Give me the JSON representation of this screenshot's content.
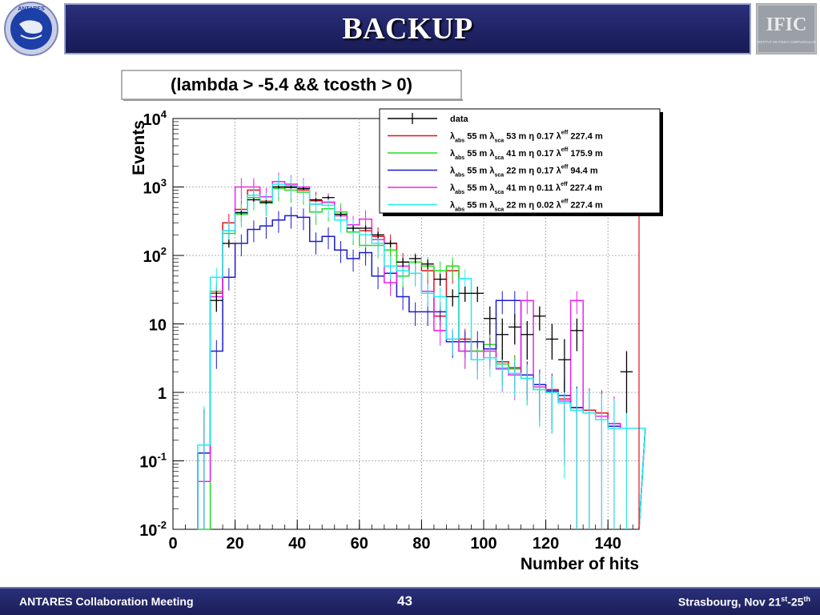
{
  "slide": {
    "title": "BACKUP",
    "logo_left_text": "ANTARES",
    "logo_right_text": "IFIC",
    "logo_right_subtext": "INSTITUT DE FISICA CORPUSCULAR"
  },
  "footer": {
    "left": "ANTARES Collaboration Meeting",
    "page": "43",
    "right_prefix": "Strasbourg, Nov 21",
    "right_sup1": "st",
    "right_mid": "-25",
    "right_sup2": "th"
  },
  "colors": {
    "header_bg": "#1f2263",
    "data": "#000000",
    "red": "#e8101a",
    "green": "#22dd22",
    "blue": "#1a1ad0",
    "magenta": "#ee22ee",
    "cyan": "#22eeee"
  },
  "chart_data": {
    "type": "line",
    "subtype": "histogram-step",
    "title": "(lambda > -5.4 && tcosth > 0)",
    "xlabel": "Number of hits",
    "ylabel": "Events",
    "xlim": [
      0,
      150
    ],
    "ylim": [
      0.01,
      10000
    ],
    "yscale": "log",
    "grid": true,
    "legend_position": "top-right",
    "x_ticks": [
      "0",
      "20",
      "40",
      "60",
      "80",
      "100",
      "120",
      "140"
    ],
    "y_ticks": [
      {
        "base": "10",
        "exp": "-2"
      },
      {
        "base": "10",
        "exp": "-1"
      },
      {
        "base": "1",
        "exp": ""
      },
      {
        "base": "10",
        "exp": ""
      },
      {
        "base": "10",
        "exp": "2"
      },
      {
        "base": "10",
        "exp": "3"
      },
      {
        "base": "10",
        "exp": "4"
      }
    ],
    "bin_width": 4,
    "bin_edges_start": 8,
    "legend": [
      {
        "key": "data",
        "text": "data",
        "color": "#000000"
      },
      {
        "key": "red",
        "abs": "55 m",
        "sca": "53 m",
        "eta": "0.17",
        "eff": "227.4 m",
        "color": "#e8101a"
      },
      {
        "key": "green",
        "abs": "55 m",
        "sca": "41 m",
        "eta": "0.17",
        "eff": "175.9 m",
        "color": "#22dd22"
      },
      {
        "key": "blue",
        "abs": "55 m",
        "sca": "22 m",
        "eta": "0.17",
        "eff": "94.4 m",
        "color": "#1a1ad0"
      },
      {
        "key": "magenta",
        "abs": "55 m",
        "sca": "41 m",
        "eta": "0.11",
        "eff": "227.4 m",
        "color": "#ee22ee"
      },
      {
        "key": "cyan",
        "abs": "55 m",
        "sca": "22 m",
        "eta": "0.02",
        "eff": "227.4 m",
        "color": "#22eeee"
      }
    ],
    "legend_symbols": {
      "lambda": "λ",
      "eta": "η",
      "abs": "abs",
      "sca": "sca",
      "eff": "eff"
    },
    "series": [
      {
        "name": "data",
        "kind": "points",
        "x": [
          14,
          18,
          22,
          26,
          30,
          34,
          38,
          42,
          46,
          50,
          54,
          58,
          62,
          66,
          70,
          74,
          78,
          82,
          86,
          90,
          94,
          98,
          102,
          106,
          110,
          114,
          118,
          122,
          126,
          130,
          146
        ],
        "y": [
          22,
          150,
          420,
          650,
          600,
          1000,
          1000,
          950,
          650,
          700,
          400,
          250,
          250,
          200,
          150,
          80,
          90,
          75,
          45,
          25,
          28,
          28,
          12,
          7,
          9,
          7,
          13,
          6,
          3,
          8,
          2
        ],
        "err_lo": [
          7,
          20,
          30,
          40,
          40,
          50,
          50,
          50,
          40,
          40,
          30,
          25,
          25,
          22,
          18,
          12,
          13,
          12,
          9,
          7,
          7,
          7,
          5,
          4,
          4,
          4,
          5,
          3,
          2,
          4,
          1.5
        ],
        "err_hi": [
          8,
          20,
          30,
          40,
          40,
          50,
          50,
          50,
          40,
          40,
          30,
          25,
          25,
          22,
          18,
          12,
          13,
          12,
          9,
          7,
          7,
          7,
          6,
          5,
          5,
          4,
          5,
          4,
          3,
          4,
          2
        ]
      },
      {
        "name": "red",
        "kind": "step",
        "values": [
          0.13,
          28,
          300,
          470,
          900,
          620,
          1000,
          980,
          900,
          630,
          600,
          380,
          220,
          230,
          190,
          150,
          80,
          80,
          60,
          13,
          60,
          6,
          4,
          5,
          2.8,
          2.3,
          1.8,
          1.2,
          1.1,
          0.8,
          0.6,
          0.55,
          0.5,
          0.35,
          0.3,
          0.3
        ]
      },
      {
        "name": "green",
        "kind": "step",
        "values": [
          0.01,
          30,
          210,
          400,
          700,
          580,
          950,
          900,
          840,
          430,
          480,
          430,
          220,
          140,
          140,
          120,
          50,
          80,
          70,
          60,
          70,
          4,
          4,
          5,
          2.6,
          2.2,
          1.6,
          1.1,
          1.0,
          0.75,
          0.6,
          0.5,
          0.45,
          0.32,
          0.3,
          0.3
        ]
      },
      {
        "name": "blue",
        "kind": "step",
        "values": [
          0.13,
          4,
          48,
          150,
          240,
          270,
          330,
          380,
          360,
          160,
          190,
          120,
          90,
          110,
          50,
          55,
          25,
          15,
          15,
          15,
          5.5,
          5.5,
          5.5,
          4.3,
          22,
          22,
          1.8,
          1.3,
          1.05,
          0.9,
          0.6,
          0.5,
          0.45,
          0.32,
          0.3,
          0.3
        ]
      },
      {
        "name": "magenta",
        "kind": "step",
        "values": [
          0.05,
          25,
          230,
          1000,
          1000,
          720,
          1200,
          1100,
          1000,
          560,
          600,
          380,
          280,
          340,
          170,
          40,
          70,
          55,
          30,
          8,
          6,
          4,
          3,
          4,
          2.2,
          1.8,
          22,
          1.2,
          1.0,
          0.75,
          22,
          0.5,
          0.45,
          0.35,
          0.3,
          0.3
        ]
      },
      {
        "name": "cyan",
        "kind": "step",
        "values": [
          0.17,
          48,
          230,
          430,
          760,
          610,
          1100,
          1050,
          940,
          560,
          540,
          330,
          250,
          200,
          150,
          70,
          60,
          55,
          28,
          25,
          6,
          46,
          3,
          3.2,
          2.3,
          1.9,
          1.6,
          1.1,
          1.0,
          0.7,
          0.55,
          0.5,
          0.4,
          0.3,
          0.3,
          0.3
        ]
      }
    ]
  }
}
